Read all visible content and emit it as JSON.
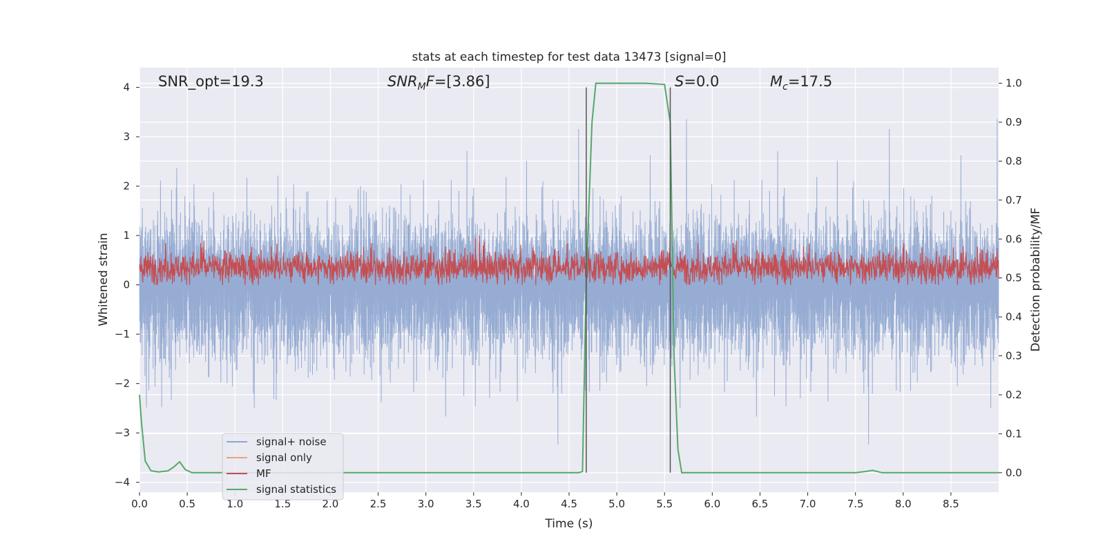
{
  "chart_data": {
    "type": "line",
    "title": "stats at each timestep for test data 13473 [signal=0]",
    "xlabel": "Time (s)",
    "ylabel": "Whitened strain",
    "ylabel_right": "Detection probability/MF",
    "xlim": [
      0.0,
      9.0
    ],
    "ylim": [
      -4.2,
      4.4
    ],
    "ylim_right": [
      -0.05,
      1.04
    ],
    "xticks": [
      0.0,
      0.5,
      1.0,
      1.5,
      2.0,
      2.5,
      3.0,
      3.5,
      4.0,
      4.5,
      5.0,
      5.5,
      6.0,
      6.5,
      7.0,
      7.5,
      8.0,
      8.5
    ],
    "xtick_labels": [
      "0.0",
      "0.5",
      "1.0",
      "1.5",
      "2.0",
      "2.5",
      "3.0",
      "3.5",
      "4.0",
      "4.5",
      "5.0",
      "5.5",
      "6.0",
      "6.5",
      "7.0",
      "7.5",
      "8.0",
      "8.5"
    ],
    "yticks": [
      4,
      3,
      2,
      1,
      0,
      -1,
      -2,
      -3,
      -4
    ],
    "ytick_labels": [
      "4",
      "3",
      "2",
      "1",
      "0",
      "−1",
      "−2",
      "−3",
      "−4"
    ],
    "yticks_right": [
      1.0,
      0.9,
      0.8,
      0.7,
      0.6,
      0.5,
      0.4,
      0.3,
      0.2,
      0.1,
      0.0
    ],
    "ytick_labels_right": [
      "1.0",
      "0.9",
      "0.8",
      "0.7",
      "0.6",
      "0.5",
      "0.4",
      "0.3",
      "0.2",
      "0.1",
      "0.0"
    ],
    "grid": true,
    "legend_position": "lower-left",
    "annotations": {
      "snr_opt": "SNR_opt=19.3",
      "snr_mf_main": "SNR",
      "snr_mf_sub": "M",
      "snr_mf_italic_tail": "F",
      "snr_mf_value": "=[3.86]",
      "s_italic": "S",
      "s_value": "=0.0",
      "mc_main": "M",
      "mc_sub": "c",
      "mc_value": "=17.5"
    },
    "vlines": [
      4.68,
      5.56
    ],
    "series": [
      {
        "name": "signal+ noise",
        "color": "#8da5cf",
        "axis": "left",
        "noise": true,
        "envelope_pos_typical": 1.6,
        "envelope_neg_typical": -1.7,
        "max": 4.0,
        "min": -3.8
      },
      {
        "name": "signal only",
        "color": "#e8a383",
        "axis": "left"
      },
      {
        "name": "MF",
        "color": "#c44e52",
        "axis": "left",
        "noise": true,
        "center": 0.35,
        "range": [
          0.0,
          1.0
        ]
      },
      {
        "name": "signal statistics",
        "color": "#55a868",
        "axis": "right",
        "x": [
          0.0,
          0.02,
          0.06,
          0.12,
          0.2,
          0.3,
          0.36,
          0.42,
          0.48,
          0.55,
          1.0,
          2.0,
          3.0,
          4.0,
          4.5,
          4.6,
          4.64,
          4.68,
          4.74,
          4.78,
          5.0,
          5.3,
          5.5,
          5.56,
          5.6,
          5.64,
          5.68,
          5.8,
          6.5,
          7.5,
          7.6,
          7.68,
          7.78,
          8.0,
          9.0
        ],
        "y": [
          0.2,
          0.13,
          0.03,
          0.005,
          0.002,
          0.005,
          0.015,
          0.028,
          0.008,
          0.0,
          0.0,
          0.0,
          0.0,
          0.0,
          0.0,
          0.0,
          0.003,
          0.5,
          0.9,
          1.0,
          1.0,
          1.0,
          0.997,
          0.9,
          0.3,
          0.06,
          0.0,
          0.0,
          0.0,
          0.0,
          0.003,
          0.006,
          0.0,
          0.0,
          0.0
        ]
      }
    ]
  }
}
